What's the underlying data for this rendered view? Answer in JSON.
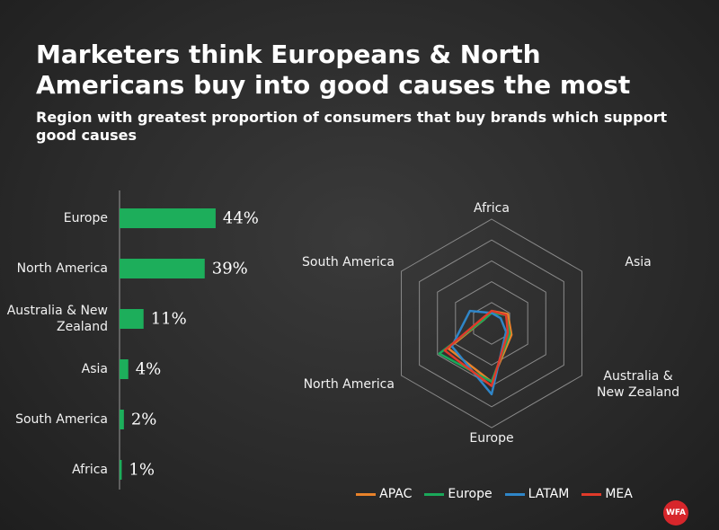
{
  "header": {
    "title": "Marketers think Europeans & North Americans buy into good causes the most",
    "subtitle": "Region with greatest proportion of consumers that buy brands which support good causes"
  },
  "chart_data": [
    {
      "type": "bar",
      "orientation": "horizontal",
      "color": "#1dae5b",
      "categories": [
        "Europe",
        "North America",
        "Australia & New Zealand",
        "Asia",
        "South America",
        "Africa"
      ],
      "values": [
        44,
        39,
        11,
        4,
        2,
        1
      ],
      "value_labels": [
        "44%",
        "39%",
        "11%",
        "4%",
        "2%",
        "1%"
      ]
    },
    {
      "type": "radar",
      "categories": [
        "Africa",
        "Asia",
        "Australia & New Zealand",
        "Europe",
        "North America",
        "South America"
      ],
      "ylim": [
        0,
        50
      ],
      "yticks": [
        10,
        20,
        30,
        40,
        50
      ],
      "series": [
        {
          "name": "APAC",
          "color": "#e8822a",
          "values": [
            6,
            9,
            11,
            28,
            24,
            4
          ]
        },
        {
          "name": "Europe",
          "color": "#1aa85a",
          "values": [
            5,
            8,
            10,
            28,
            29,
            4
          ]
        },
        {
          "name": "LATAM",
          "color": "#2f86c8",
          "values": [
            5,
            5,
            8,
            34,
            22,
            12
          ]
        },
        {
          "name": "MEA",
          "color": "#e03a2a",
          "values": [
            6,
            8,
            9,
            30,
            26,
            5
          ]
        }
      ],
      "legend": "bottom"
    }
  ],
  "logo": {
    "text": "WFA"
  }
}
